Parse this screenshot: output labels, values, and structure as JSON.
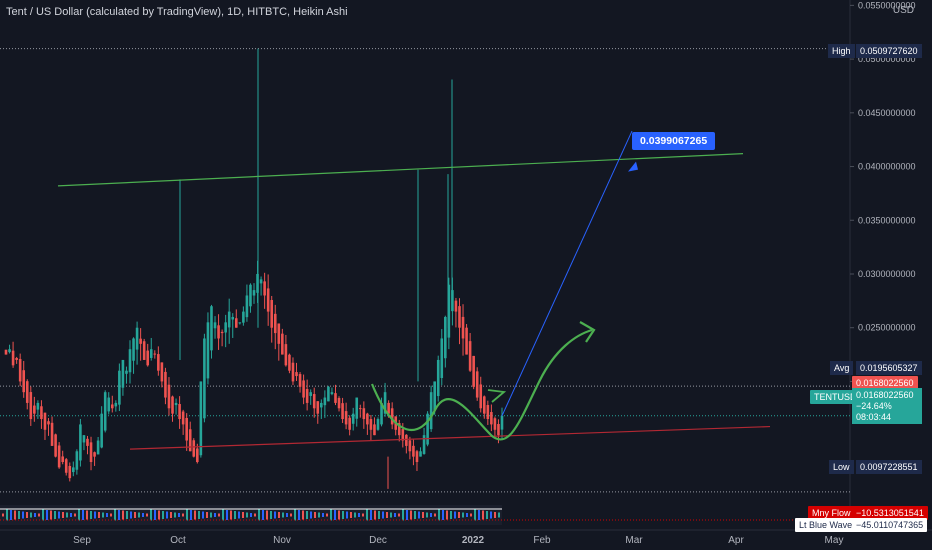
{
  "header": {
    "title": "Tent / US Dollar (calculated by TradingView), 1D, HITBTC, Heikin Ashi",
    "currency": "USD"
  },
  "price_scale": {
    "ticks": [
      "0.0550000000",
      "0.0500000000",
      "0.0450000000",
      "0.0400000000",
      "0.0350000000",
      "0.0300000000",
      "0.0250000000",
      "0.0200000000"
    ],
    "high_label": "High",
    "high_value": "0.0509727620",
    "avg_label": "Avg",
    "avg_value": "0.0195605327",
    "low_label": "Low",
    "low_value": "0.0097228551",
    "last_price": "0.0168022560",
    "symbol": "TENTUSD",
    "symbol_price": "0.0168022560",
    "change": "−24.64%",
    "countdown": "08:03:44"
  },
  "annotation": {
    "target_price": "0.0399067265"
  },
  "time_axis": [
    "Sep",
    "Oct",
    "Nov",
    "Dec",
    "2022",
    "Feb",
    "Mar",
    "Apr",
    "May"
  ],
  "indicators": {
    "money_flow_label": "Mny Flow",
    "money_flow_value": "−10.5313051541",
    "wave_label": "Lt Blue Wave",
    "wave_value": "−45.0110747365"
  },
  "colors": {
    "up": "#26a69a",
    "down": "#ef5350",
    "bg": "#131722",
    "trend_green": "#4caf50",
    "trend_red": "#b22833",
    "arrow_blue": "#2962ff"
  },
  "chart_data": {
    "type": "candlestick",
    "chart_style": "Heikin Ashi",
    "interval": "1D",
    "ylim": [
      0.0085,
      0.0555
    ],
    "y_ticks": [
      0.055,
      0.05,
      0.045,
      0.04,
      0.035,
      0.03,
      0.025,
      0.02
    ],
    "x_ticks": [
      "Sep",
      "Oct",
      "Nov",
      "Dec",
      "2022",
      "Feb",
      "Mar",
      "Apr",
      "May"
    ],
    "high": 0.050972762,
    "avg": 0.0195605327,
    "low": 0.0097228551,
    "last": 0.016802256,
    "target": 0.0399067265,
    "close_series": [
      0.0225,
      0.023,
      0.0215,
      0.022,
      0.02,
      0.019,
      0.018,
      0.0165,
      0.017,
      0.018,
      0.0165,
      0.0155,
      0.016,
      0.014,
      0.013,
      0.012,
      0.0125,
      0.0115,
      0.011,
      0.012,
      0.0135,
      0.016,
      0.015,
      0.014,
      0.0125,
      0.013,
      0.0145,
      0.017,
      0.019,
      0.0185,
      0.0175,
      0.018,
      0.021,
      0.022,
      0.021,
      0.023,
      0.024,
      0.025,
      0.0235,
      0.022,
      0.0215,
      0.023,
      0.0225,
      0.021,
      0.02,
      0.0185,
      0.0175,
      0.017,
      0.018,
      0.0165,
      0.016,
      0.0145,
      0.0135,
      0.013,
      0.0125,
      0.02,
      0.024,
      0.0255,
      0.027,
      0.0255,
      0.024,
      0.0245,
      0.0255,
      0.0265,
      0.026,
      0.025,
      0.0255,
      0.0265,
      0.028,
      0.029,
      0.0285,
      0.03,
      0.0295,
      0.028,
      0.0265,
      0.025,
      0.0245,
      0.0235,
      0.0225,
      0.0215,
      0.021,
      0.02,
      0.0205,
      0.0195,
      0.0185,
      0.018,
      0.019,
      0.0175,
      0.017,
      0.018,
      0.0185,
      0.0195,
      0.019,
      0.018,
      0.0175,
      0.0165,
      0.016,
      0.0155,
      0.017,
      0.0185,
      0.0175,
      0.0165,
      0.016,
      0.0155,
      0.015,
      0.0165,
      0.018,
      0.019,
      0.017,
      0.016,
      0.0155,
      0.015,
      0.0145,
      0.014,
      0.0135,
      0.013,
      0.0125,
      0.0135,
      0.015,
      0.017,
      0.019,
      0.02,
      0.022,
      0.024,
      0.026,
      0.029,
      0.0285,
      0.0265,
      0.025,
      0.024,
      0.0225,
      0.021,
      0.0195,
      0.0185,
      0.0175,
      0.017,
      0.0165,
      0.016,
      0.0155,
      0.015,
      0.0168
    ]
  }
}
